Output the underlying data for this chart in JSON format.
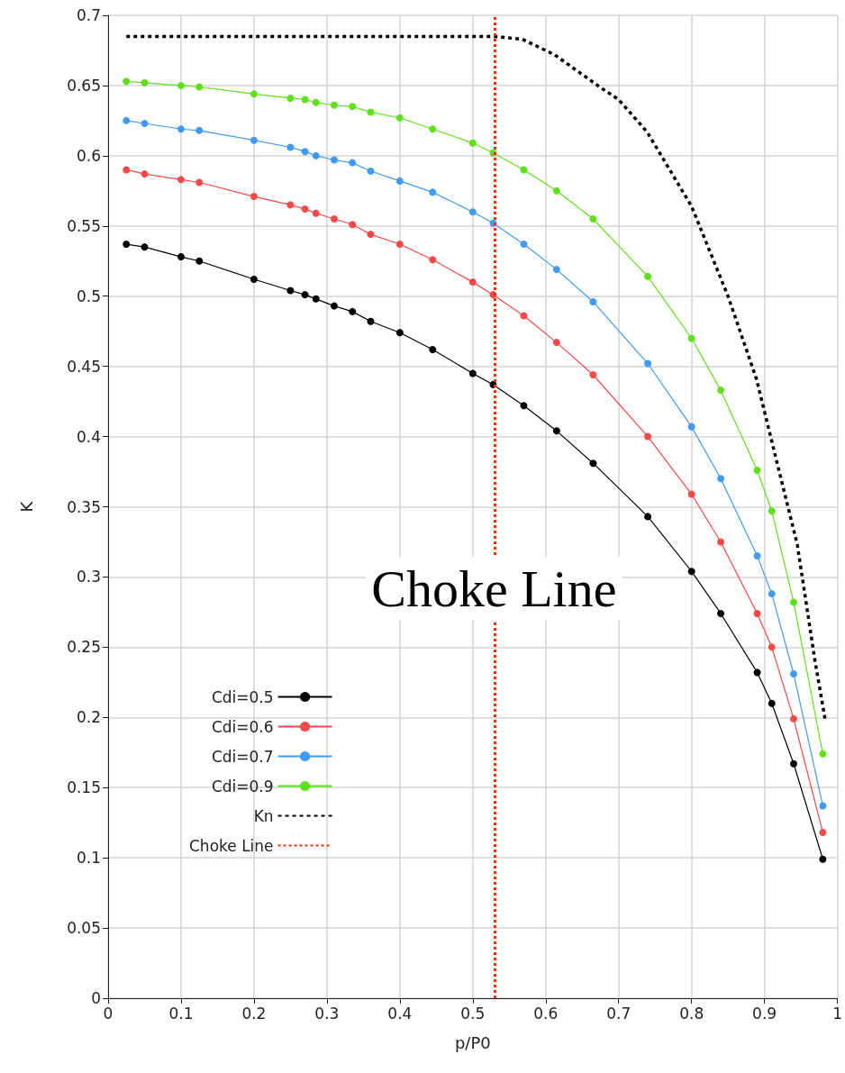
{
  "chart_data": {
    "type": "line",
    "xlabel": "p/P0",
    "ylabel": "K",
    "x": [
      0.025,
      0.05,
      0.1,
      0.125,
      0.2,
      0.25,
      0.27,
      0.285,
      0.31,
      0.335,
      0.36,
      0.4,
      0.445,
      0.5,
      0.528,
      0.57,
      0.615,
      0.665,
      0.74,
      0.8,
      0.84,
      0.89,
      0.91,
      0.94,
      0.98
    ],
    "series": [
      {
        "name": "Cdi=0.5",
        "color": "#000000",
        "marker": "circle",
        "values": [
          0.537,
          0.535,
          0.528,
          0.525,
          0.512,
          0.504,
          0.501,
          0.498,
          0.493,
          0.489,
          0.482,
          0.474,
          0.462,
          0.445,
          0.437,
          0.422,
          0.404,
          0.381,
          0.343,
          0.304,
          0.274,
          0.232,
          0.21,
          0.167,
          0.099
        ]
      },
      {
        "name": "Cdi=0.6",
        "color": "#f54848",
        "marker": "circle",
        "values": [
          0.59,
          0.587,
          0.583,
          0.581,
          0.571,
          0.565,
          0.562,
          0.559,
          0.555,
          0.551,
          0.544,
          0.537,
          0.526,
          0.51,
          0.501,
          0.486,
          0.467,
          0.444,
          0.4,
          0.359,
          0.325,
          0.274,
          0.25,
          0.199,
          0.118
        ]
      },
      {
        "name": "Cdi=0.7",
        "color": "#3f9bf5",
        "marker": "circle",
        "values": [
          0.625,
          0.623,
          0.619,
          0.618,
          0.611,
          0.606,
          0.603,
          0.6,
          0.597,
          0.595,
          0.589,
          0.582,
          0.574,
          0.56,
          0.552,
          0.537,
          0.519,
          0.496,
          0.452,
          0.407,
          0.37,
          0.315,
          0.288,
          0.231,
          0.137
        ]
      },
      {
        "name": "Cdi=0.9",
        "color": "#5fe01a",
        "marker": "circle",
        "values": [
          0.653,
          0.652,
          0.65,
          0.649,
          0.644,
          0.641,
          0.64,
          0.638,
          0.636,
          0.635,
          0.631,
          0.627,
          0.619,
          0.609,
          0.602,
          0.59,
          0.575,
          0.555,
          0.514,
          0.47,
          0.433,
          0.376,
          0.347,
          0.282,
          0.174
        ]
      },
      {
        "name": "Kn",
        "color": "#000000",
        "marker": "none",
        "line_style": "dashed",
        "x": [
          0.025,
          0.2,
          0.4,
          0.528,
          0.568,
          0.612,
          0.674,
          0.7,
          0.739,
          0.8,
          0.85,
          0.889,
          0.915,
          0.945,
          0.969,
          0.983
        ],
        "values": [
          0.685,
          0.685,
          0.685,
          0.685,
          0.683,
          0.672,
          0.649,
          0.64,
          0.617,
          0.564,
          0.5,
          0.441,
          0.386,
          0.323,
          0.241,
          0.199
        ]
      }
    ],
    "ref_lines": [
      {
        "axis": "x",
        "value": 0.528,
        "label": "Choke Line",
        "color": "#ff2a00",
        "line_style": "dotted"
      }
    ],
    "xlim": [
      0,
      1
    ],
    "xticks": [
      0,
      0.1,
      0.2,
      0.3,
      0.4,
      0.5,
      0.6,
      0.7,
      0.8,
      0.9,
      1
    ],
    "ylim": [
      0,
      0.7
    ],
    "yticks": [
      0,
      0.05,
      0.1,
      0.15,
      0.2,
      0.25,
      0.3,
      0.35,
      0.4,
      0.45,
      0.5,
      0.55,
      0.6,
      0.65,
      0.7
    ],
    "grid": true,
    "legend": "bottom left"
  }
}
